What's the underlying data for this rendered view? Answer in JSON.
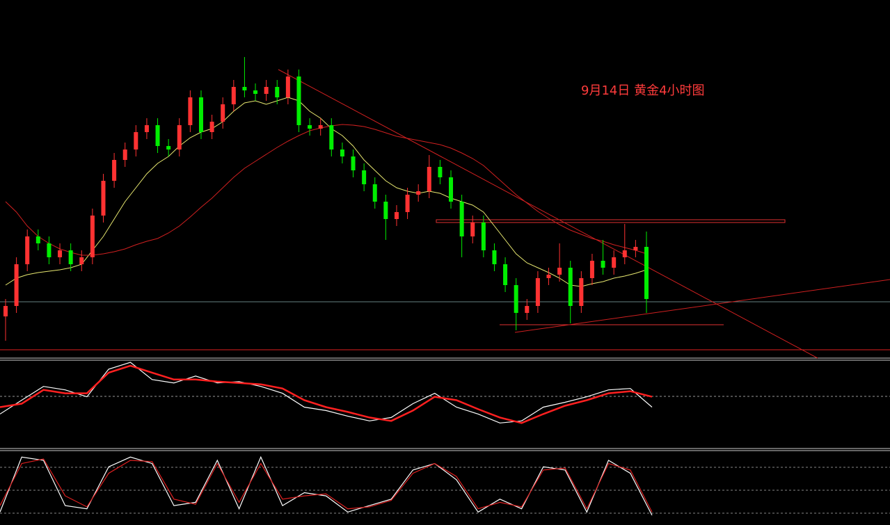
{
  "chart_data": [
    {
      "type": "candlestick",
      "title": "9月14日 黄金4小时图",
      "up_color": "#ff3232",
      "down_color": "#00ee00",
      "ylim": [
        0,
        515
      ],
      "open": [
        60,
        75,
        135,
        175,
        165,
        145,
        155,
        135,
        145,
        205,
        255,
        285,
        300,
        325,
        335,
        305,
        300,
        335,
        375,
        325,
        340,
        365,
        390,
        385,
        380,
        390,
        375,
        405,
        335,
        330,
        335,
        300,
        290,
        270,
        250,
        225,
        200,
        210,
        235,
        240,
        275,
        260,
        225,
        175,
        195,
        155,
        135,
        105,
        65,
        75,
        115,
        120,
        130,
        75,
        115,
        140,
        130,
        145,
        155,
        160
      ],
      "high": [
        85,
        145,
        185,
        185,
        175,
        165,
        165,
        155,
        215,
        265,
        295,
        310,
        335,
        345,
        345,
        315,
        345,
        385,
        385,
        350,
        375,
        400,
        433,
        395,
        400,
        400,
        415,
        415,
        345,
        345,
        345,
        310,
        300,
        280,
        260,
        235,
        220,
        245,
        250,
        292,
        285,
        270,
        235,
        205,
        205,
        165,
        145,
        115,
        85,
        125,
        130,
        165,
        140,
        125,
        150,
        170,
        155,
        193,
        170,
        182
      ],
      "low": [
        25,
        65,
        125,
        155,
        135,
        135,
        125,
        125,
        135,
        195,
        245,
        275,
        290,
        315,
        295,
        290,
        290,
        325,
        315,
        315,
        330,
        355,
        375,
        370,
        370,
        365,
        365,
        325,
        320,
        320,
        290,
        280,
        260,
        240,
        215,
        170,
        190,
        200,
        225,
        230,
        250,
        215,
        145,
        165,
        145,
        125,
        95,
        40,
        55,
        65,
        105,
        110,
        50,
        65,
        105,
        120,
        120,
        135,
        145,
        65
      ],
      "close": [
        75,
        135,
        175,
        165,
        145,
        155,
        135,
        145,
        205,
        255,
        285,
        300,
        325,
        335,
        305,
        300,
        335,
        375,
        325,
        340,
        365,
        390,
        385,
        380,
        390,
        375,
        405,
        335,
        330,
        335,
        300,
        290,
        270,
        250,
        225,
        200,
        210,
        235,
        240,
        275,
        260,
        225,
        175,
        195,
        155,
        135,
        105,
        65,
        75,
        115,
        120,
        130,
        75,
        115,
        140,
        130,
        145,
        155,
        160,
        85
      ],
      "series": [
        {
          "color": "#e8e870",
          "values": [
            105,
            115,
            120,
            123,
            125,
            127,
            130,
            135,
            155,
            175,
            200,
            225,
            245,
            265,
            280,
            290,
            305,
            317,
            325,
            330,
            340,
            355,
            367,
            370,
            365,
            370,
            375,
            370,
            355,
            345,
            330,
            320,
            305,
            285,
            270,
            255,
            245,
            240,
            237,
            240,
            237,
            230,
            225,
            220,
            210,
            190,
            170,
            150,
            137,
            130,
            123,
            115,
            105,
            103,
            107,
            110,
            115,
            118,
            122,
            127
          ]
        },
        {
          "color": "#d02020",
          "values": [
            225,
            210,
            190,
            175,
            165,
            157,
            152,
            148,
            148,
            150,
            153,
            157,
            163,
            168,
            172,
            180,
            190,
            203,
            217,
            230,
            245,
            260,
            273,
            283,
            293,
            303,
            312,
            320,
            327,
            331,
            334,
            336,
            335,
            333,
            329,
            324,
            319,
            316,
            313,
            310,
            307,
            302,
            295,
            287,
            277,
            263,
            249,
            235,
            223,
            211,
            201,
            192,
            184,
            178,
            172,
            168,
            163,
            159,
            155,
            150
          ]
        }
      ]
    },
    {
      "type": "line",
      "ylim": [
        -75,
        53
      ],
      "series": [
        {
          "color": "#ffffff",
          "values": [
            -25,
            -5,
            15,
            10,
            0,
            40,
            50,
            25,
            20,
            30,
            20,
            22,
            15,
            5,
            -15,
            -20,
            -28,
            -35,
            -30,
            -10,
            5,
            -15,
            -25,
            -38,
            -35,
            -15,
            -8,
            0,
            10,
            12,
            -15
          ]
        },
        {
          "color": "#ff2020",
          "values": [
            -15,
            -10,
            10,
            5,
            5,
            35,
            45,
            35,
            25,
            25,
            22,
            20,
            18,
            12,
            -5,
            -15,
            -22,
            -30,
            -35,
            -20,
            0,
            -5,
            -18,
            -30,
            -38,
            -25,
            -13,
            -5,
            5,
            8,
            0
          ]
        }
      ]
    },
    {
      "type": "line",
      "ylim": [
        -10,
        105
      ],
      "series": [
        {
          "color": "#ffffff",
          "values": [
            10,
            95,
            90,
            20,
            15,
            80,
            95,
            85,
            20,
            25,
            90,
            15,
            95,
            20,
            40,
            35,
            10,
            20,
            30,
            75,
            85,
            60,
            10,
            30,
            15,
            80,
            75,
            10,
            90,
            70,
            5
          ]
        },
        {
          "color": "#e02020",
          "values": [
            20,
            85,
            92,
            35,
            18,
            70,
            90,
            88,
            30,
            22,
            85,
            25,
            85,
            30,
            35,
            38,
            15,
            18,
            28,
            70,
            85,
            65,
            15,
            25,
            18,
            75,
            78,
            15,
            85,
            75,
            10
          ]
        }
      ]
    }
  ]
}
